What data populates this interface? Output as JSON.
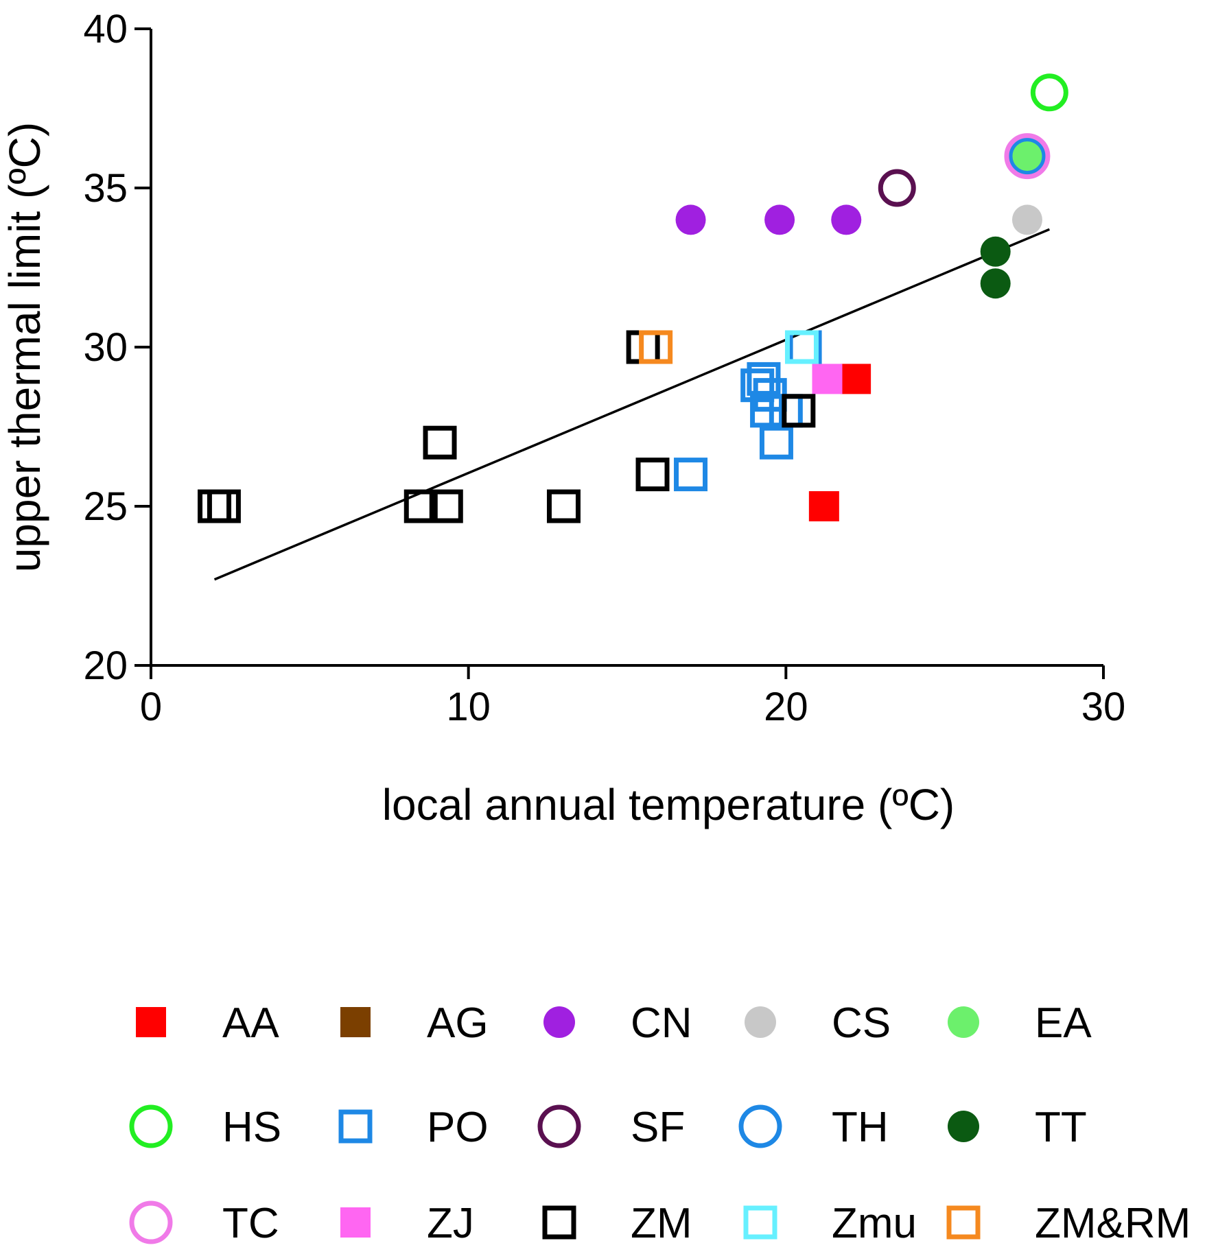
{
  "chart_data": {
    "type": "scatter",
    "title": "",
    "xlabel": "local annual temperature (ºC)",
    "ylabel": "upper thermal limit (ºC)",
    "xlim": [
      0,
      30
    ],
    "ylim": [
      20,
      40
    ],
    "xticks": [
      0,
      10,
      20,
      30
    ],
    "yticks": [
      20,
      25,
      30,
      35,
      40
    ],
    "xtick_labels": [
      "0",
      "10",
      "20",
      "30"
    ],
    "ytick_labels": [
      "20",
      "25",
      "30",
      "35",
      "40"
    ],
    "grid": false,
    "legend_position": "bottom",
    "legend_columns": 5,
    "regression_line": {
      "x": [
        2.0,
        28.3
      ],
      "y": [
        22.7,
        33.7
      ]
    },
    "series": [
      {
        "name": "AA",
        "marker": "square",
        "filled": true,
        "color": "#ff0000",
        "points": [
          [
            21.2,
            25
          ],
          [
            22.2,
            29
          ]
        ]
      },
      {
        "name": "AG",
        "marker": "square",
        "filled": true,
        "color": "#7b3f00",
        "points": []
      },
      {
        "name": "CN",
        "marker": "circle",
        "filled": true,
        "color": "#a020e0",
        "points": [
          [
            17.0,
            34
          ],
          [
            19.8,
            34
          ],
          [
            21.9,
            34
          ]
        ]
      },
      {
        "name": "CS",
        "marker": "circle",
        "filled": true,
        "color": "#c8c8c8",
        "points": [
          [
            27.6,
            34
          ]
        ]
      },
      {
        "name": "EA",
        "marker": "circle",
        "filled": true,
        "color": "#6cf06c",
        "points": [
          [
            27.6,
            36
          ]
        ]
      },
      {
        "name": "HS",
        "marker": "circle",
        "filled": false,
        "color": "#22ee22",
        "points": [
          [
            28.3,
            38
          ]
        ]
      },
      {
        "name": "PO",
        "marker": "square",
        "filled": false,
        "color": "#1e88e5",
        "points": [
          [
            17.0,
            26
          ],
          [
            19.1,
            28.8
          ],
          [
            19.3,
            29
          ],
          [
            19.5,
            28.5
          ],
          [
            19.4,
            28
          ],
          [
            19.7,
            27
          ],
          [
            20.0,
            28
          ],
          [
            20.6,
            30
          ]
        ]
      },
      {
        "name": "SF",
        "marker": "circle",
        "filled": false,
        "color": "#5a1050",
        "points": [
          [
            23.5,
            35
          ]
        ]
      },
      {
        "name": "TH",
        "marker": "circle",
        "filled": false,
        "color": "#1e88e5",
        "points": [
          [
            27.6,
            36
          ]
        ]
      },
      {
        "name": "TT",
        "marker": "circle",
        "filled": true,
        "color": "#0b5a12",
        "points": [
          [
            26.6,
            33
          ],
          [
            26.6,
            32
          ]
        ]
      },
      {
        "name": "TC",
        "marker": "circle",
        "filled": false,
        "color": "#f07ae8",
        "points": [
          [
            27.6,
            36
          ]
        ]
      },
      {
        "name": "ZJ",
        "marker": "square",
        "filled": true,
        "color": "#ff66f2",
        "points": [
          [
            21.3,
            29
          ]
        ]
      },
      {
        "name": "ZM",
        "marker": "square",
        "filled": false,
        "color": "#000000",
        "points": [
          [
            2.0,
            25
          ],
          [
            2.3,
            25
          ],
          [
            8.5,
            25
          ],
          [
            9.3,
            25
          ],
          [
            9.1,
            27
          ],
          [
            13.0,
            25
          ],
          [
            15.5,
            30
          ],
          [
            15.8,
            26
          ],
          [
            20.4,
            28
          ]
        ]
      },
      {
        "name": "Zmu",
        "marker": "square",
        "filled": false,
        "color": "#66f0ff",
        "points": [
          [
            20.5,
            30
          ]
        ]
      },
      {
        "name": "ZM&RM",
        "marker": "square",
        "filled": false,
        "color": "#f5891f",
        "points": [
          [
            15.9,
            30
          ]
        ]
      }
    ]
  }
}
